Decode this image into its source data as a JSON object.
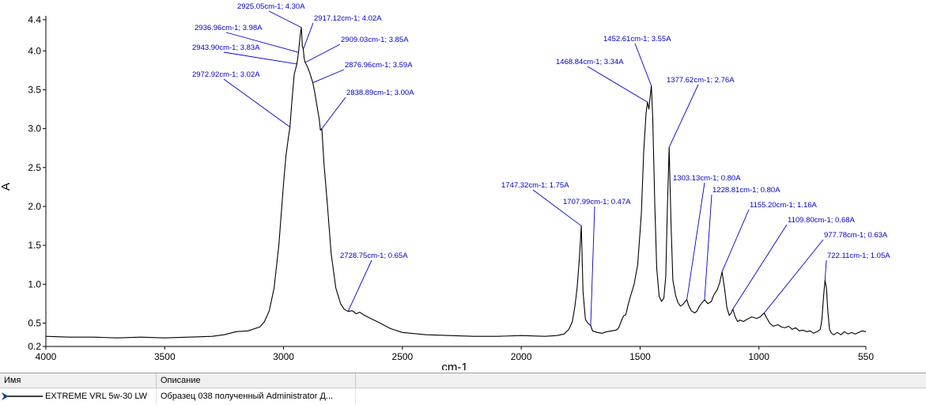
{
  "chart_data": {
    "type": "line",
    "xlabel": "cm-1",
    "ylabel": "A",
    "xlim": [
      4000,
      550
    ],
    "ylim": [
      0.2,
      4.45
    ],
    "x_reversed": true,
    "x_ticks": [
      4000,
      3500,
      3000,
      2500,
      2000,
      1500,
      1000,
      550
    ],
    "y_ticks": [
      {
        "value": 0.2,
        "label": "0.2"
      },
      {
        "value": 0.5,
        "label": "0.5"
      },
      {
        "value": 1.0,
        "label": "1.0"
      },
      {
        "value": 1.5,
        "label": "1.5"
      },
      {
        "value": 2.0,
        "label": "2.0"
      },
      {
        "value": 2.5,
        "label": "2.5"
      },
      {
        "value": 3.0,
        "label": "3.0"
      },
      {
        "value": 3.5,
        "label": "3.5"
      },
      {
        "value": 4.0,
        "label": "4.0"
      },
      {
        "value": 4.4,
        "label": "4.4"
      }
    ],
    "grid": false,
    "line_color": "#000000",
    "annotation_color": "#0000cc",
    "series": [
      {
        "name": "EXTREME VRL 5w-30 LW",
        "points": [
          [
            4000,
            0.33
          ],
          [
            3900,
            0.32
          ],
          [
            3800,
            0.32
          ],
          [
            3700,
            0.31
          ],
          [
            3600,
            0.32
          ],
          [
            3500,
            0.31
          ],
          [
            3400,
            0.32
          ],
          [
            3300,
            0.33
          ],
          [
            3250,
            0.35
          ],
          [
            3200,
            0.39
          ],
          [
            3150,
            0.4
          ],
          [
            3100,
            0.45
          ],
          [
            3080,
            0.52
          ],
          [
            3060,
            0.66
          ],
          [
            3040,
            0.95
          ],
          [
            3020,
            1.5
          ],
          [
            3000,
            2.3
          ],
          [
            2990,
            2.65
          ],
          [
            2980,
            2.88
          ],
          [
            2972.92,
            3.02
          ],
          [
            2965,
            3.35
          ],
          [
            2955,
            3.7
          ],
          [
            2943.9,
            3.83
          ],
          [
            2936.96,
            3.98
          ],
          [
            2930,
            4.2
          ],
          [
            2925.05,
            4.3
          ],
          [
            2921,
            4.06
          ],
          [
            2917.12,
            4.02
          ],
          [
            2913,
            3.9
          ],
          [
            2909.03,
            3.85
          ],
          [
            2900,
            3.8
          ],
          [
            2890,
            3.72
          ],
          [
            2876.96,
            3.59
          ],
          [
            2868,
            3.45
          ],
          [
            2860,
            3.3
          ],
          [
            2850,
            3.12
          ],
          [
            2845,
            2.98
          ],
          [
            2838.89,
            3.0
          ],
          [
            2830,
            2.55
          ],
          [
            2815,
            2.0
          ],
          [
            2800,
            1.4
          ],
          [
            2780,
            0.95
          ],
          [
            2760,
            0.75
          ],
          [
            2745,
            0.68
          ],
          [
            2728.75,
            0.65
          ],
          [
            2710,
            0.66
          ],
          [
            2695,
            0.62
          ],
          [
            2680,
            0.64
          ],
          [
            2665,
            0.61
          ],
          [
            2640,
            0.57
          ],
          [
            2600,
            0.51
          ],
          [
            2550,
            0.43
          ],
          [
            2500,
            0.38
          ],
          [
            2400,
            0.35
          ],
          [
            2300,
            0.34
          ],
          [
            2200,
            0.33
          ],
          [
            2100,
            0.33
          ],
          [
            2000,
            0.34
          ],
          [
            1900,
            0.33
          ],
          [
            1850,
            0.34
          ],
          [
            1820,
            0.36
          ],
          [
            1800,
            0.42
          ],
          [
            1785,
            0.52
          ],
          [
            1775,
            0.7
          ],
          [
            1765,
            0.95
          ],
          [
            1755,
            1.35
          ],
          [
            1747.32,
            1.75
          ],
          [
            1740,
            0.9
          ],
          [
            1730,
            0.55
          ],
          [
            1720,
            0.5
          ],
          [
            1707.99,
            0.47
          ],
          [
            1700,
            0.4
          ],
          [
            1680,
            0.38
          ],
          [
            1660,
            0.37
          ],
          [
            1640,
            0.39
          ],
          [
            1620,
            0.4
          ],
          [
            1600,
            0.41
          ],
          [
            1590,
            0.44
          ],
          [
            1580,
            0.52
          ],
          [
            1570,
            0.59
          ],
          [
            1560,
            0.61
          ],
          [
            1550,
            0.74
          ],
          [
            1540,
            0.85
          ],
          [
            1525,
            1.0
          ],
          [
            1510,
            1.25
          ],
          [
            1495,
            1.9
          ],
          [
            1485,
            2.7
          ],
          [
            1475,
            3.2
          ],
          [
            1468.84,
            3.34
          ],
          [
            1463,
            3.25
          ],
          [
            1458,
            3.4
          ],
          [
            1452.61,
            3.55
          ],
          [
            1447,
            3.15
          ],
          [
            1438,
            2.0
          ],
          [
            1430,
            1.2
          ],
          [
            1420,
            0.85
          ],
          [
            1410,
            0.78
          ],
          [
            1400,
            0.82
          ],
          [
            1392,
            1.1
          ],
          [
            1385,
            2.0
          ],
          [
            1377.62,
            2.76
          ],
          [
            1370,
            1.8
          ],
          [
            1362,
            1.05
          ],
          [
            1350,
            0.85
          ],
          [
            1340,
            0.76
          ],
          [
            1330,
            0.72
          ],
          [
            1320,
            0.74
          ],
          [
            1310,
            0.78
          ],
          [
            1303.13,
            0.8
          ],
          [
            1295,
            0.72
          ],
          [
            1285,
            0.66
          ],
          [
            1270,
            0.63
          ],
          [
            1260,
            0.66
          ],
          [
            1250,
            0.72
          ],
          [
            1240,
            0.76
          ],
          [
            1228.81,
            0.8
          ],
          [
            1215,
            0.75
          ],
          [
            1200,
            0.78
          ],
          [
            1190,
            0.86
          ],
          [
            1175,
            0.93
          ],
          [
            1165,
            1.02
          ],
          [
            1155.2,
            1.16
          ],
          [
            1145,
            0.95
          ],
          [
            1135,
            0.7
          ],
          [
            1125,
            0.6
          ],
          [
            1117,
            0.63
          ],
          [
            1109.8,
            0.68
          ],
          [
            1100,
            0.58
          ],
          [
            1090,
            0.52
          ],
          [
            1080,
            0.54
          ],
          [
            1065,
            0.52
          ],
          [
            1050,
            0.55
          ],
          [
            1030,
            0.58
          ],
          [
            1010,
            0.56
          ],
          [
            995,
            0.58
          ],
          [
            985,
            0.61
          ],
          [
            977.78,
            0.63
          ],
          [
            968,
            0.57
          ],
          [
            955,
            0.5
          ],
          [
            940,
            0.46
          ],
          [
            920,
            0.48
          ],
          [
            905,
            0.45
          ],
          [
            890,
            0.44
          ],
          [
            875,
            0.46
          ],
          [
            860,
            0.42
          ],
          [
            845,
            0.44
          ],
          [
            830,
            0.4
          ],
          [
            815,
            0.41
          ],
          [
            800,
            0.39
          ],
          [
            785,
            0.4
          ],
          [
            770,
            0.37
          ],
          [
            755,
            0.39
          ],
          [
            742,
            0.42
          ],
          [
            735,
            0.55
          ],
          [
            728,
            0.85
          ],
          [
            722.11,
            1.05
          ],
          [
            716,
            0.95
          ],
          [
            710,
            0.65
          ],
          [
            703,
            0.42
          ],
          [
            695,
            0.37
          ],
          [
            685,
            0.35
          ],
          [
            670,
            0.38
          ],
          [
            655,
            0.35
          ],
          [
            640,
            0.39
          ],
          [
            625,
            0.36
          ],
          [
            610,
            0.38
          ],
          [
            595,
            0.36
          ],
          [
            580,
            0.38
          ],
          [
            565,
            0.4
          ],
          [
            550,
            0.39
          ]
        ]
      }
    ],
    "annotations": [
      {
        "x": 2925.05,
        "y": 4.3,
        "label": "2925.05cm-1; 4.30A"
      },
      {
        "x": 2917.12,
        "y": 4.02,
        "label": "2917.12cm-1; 4.02A"
      },
      {
        "x": 2936.96,
        "y": 3.98,
        "label": "2936.96cm-1; 3.98A"
      },
      {
        "x": 2909.03,
        "y": 3.85,
        "label": "2909.03cm-1; 3.85A"
      },
      {
        "x": 2943.9,
        "y": 3.83,
        "label": "2943.90cm-1; 3.83A"
      },
      {
        "x": 2876.96,
        "y": 3.59,
        "label": "2876.96cm-1; 3.59A"
      },
      {
        "x": 2972.92,
        "y": 3.02,
        "label": "2972.92cm-1; 3.02A"
      },
      {
        "x": 2838.89,
        "y": 3.0,
        "label": "2838.89cm-1; 3.00A"
      },
      {
        "x": 2728.75,
        "y": 0.65,
        "label": "2728.75cm-1; 0.65A"
      },
      {
        "x": 1747.32,
        "y": 1.75,
        "label": "1747.32cm-1; 1.75A"
      },
      {
        "x": 1707.99,
        "y": 0.47,
        "label": "1707.99cm-1; 0.47A"
      },
      {
        "x": 1452.61,
        "y": 3.55,
        "label": "1452.61cm-1; 3.55A"
      },
      {
        "x": 1468.84,
        "y": 3.34,
        "label": "1468.84cm-1; 3.34A"
      },
      {
        "x": 1377.62,
        "y": 2.76,
        "label": "1377.62cm-1; 2.76A"
      },
      {
        "x": 1303.13,
        "y": 0.8,
        "label": "1303.13cm-1; 0.80A"
      },
      {
        "x": 1228.81,
        "y": 0.8,
        "label": "1228.81cm-1; 0.80A"
      },
      {
        "x": 1155.2,
        "y": 1.16,
        "label": "1155.20cm-1; 1.16A"
      },
      {
        "x": 1109.8,
        "y": 0.68,
        "label": "1109.80cm-1; 0.68A"
      },
      {
        "x": 977.78,
        "y": 0.63,
        "label": "977.78cm-1; 0.63A"
      },
      {
        "x": 722.11,
        "y": 1.05,
        "label": "722.11cm-1; 1.05A"
      }
    ]
  },
  "legend_table": {
    "col_name_header": "Имя",
    "col_desc_header": "Описание",
    "rows": [
      {
        "name": "EXTREME VRL 5w-30 LW",
        "description": "Образец 038 полученный Administrator Д...",
        "marker_color": "#1a3a9a"
      }
    ]
  }
}
